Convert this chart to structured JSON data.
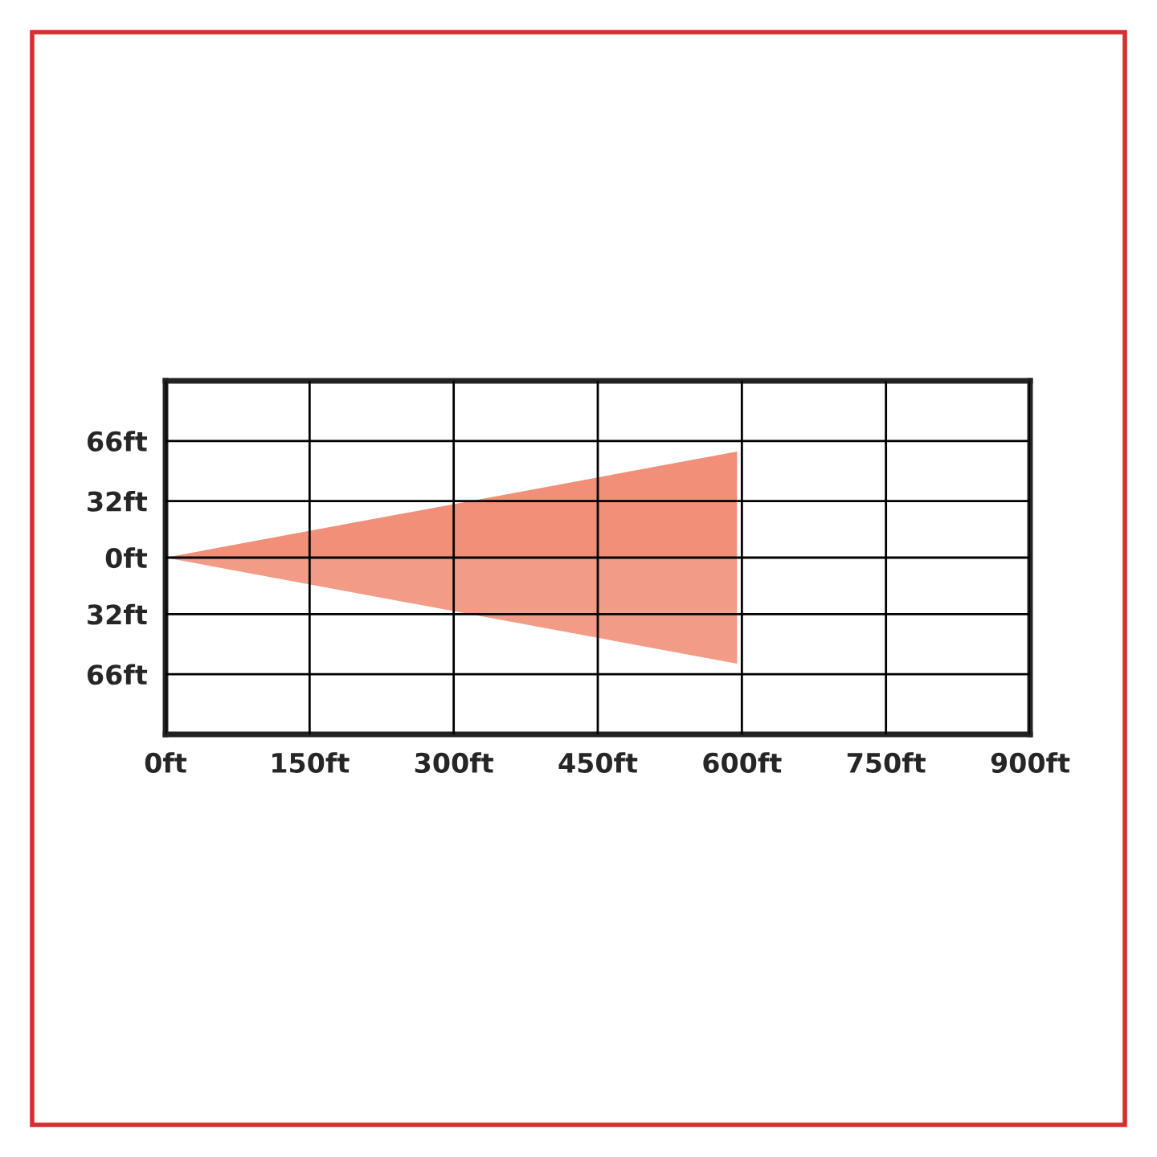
{
  "chart_data": {
    "type": "area",
    "x": [
      0,
      595
    ],
    "series": [
      {
        "color": "#ec6a4c",
        "values": [
          0,
          60
        ]
      },
      {
        "color": "#ee7a5e",
        "values": [
          0,
          -60
        ]
      }
    ],
    "xlim": [
      0,
      900
    ],
    "xticks": [
      {
        "value": 0,
        "label": "0ft"
      },
      {
        "value": 150,
        "label": "150ft"
      },
      {
        "value": 300,
        "label": "300ft"
      },
      {
        "value": 450,
        "label": "450ft"
      },
      {
        "value": 600,
        "label": "600ft"
      },
      {
        "value": 750,
        "label": "750ft"
      },
      {
        "value": 900,
        "label": "900ft"
      }
    ],
    "ylim": [
      -100,
      100
    ],
    "yticks": [
      {
        "value": -66,
        "label": "66ft"
      },
      {
        "value": -32,
        "label": "32ft"
      },
      {
        "value": 0,
        "label": "0ft"
      },
      {
        "value": 32,
        "label": "32ft"
      },
      {
        "value": 66,
        "label": "66ft"
      }
    ],
    "grid": true,
    "legend": false
  }
}
